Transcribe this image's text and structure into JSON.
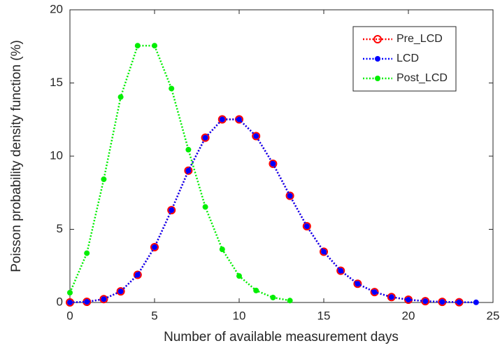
{
  "chart_data": {
    "type": "line",
    "xlabel": "Number of available measurement days",
    "ylabel": "Poisson probability density function (%)",
    "xlim": [
      0,
      25
    ],
    "xticks": [
      0,
      5,
      10,
      15,
      20,
      25
    ],
    "ylim": [
      0,
      20
    ],
    "yticks": [
      0,
      5,
      10,
      15,
      20
    ],
    "legend": "top-right",
    "series": [
      {
        "name": "Pre_LCD",
        "color": "#ff0000",
        "marker": "open-circle",
        "x": [
          0,
          1,
          2,
          3,
          4,
          5,
          6,
          7,
          8,
          9,
          10,
          11,
          12,
          13,
          14,
          15,
          16,
          17,
          18,
          19,
          20,
          21,
          22,
          23
        ],
        "values": [
          0.0045,
          0.045,
          0.23,
          0.76,
          1.89,
          3.78,
          6.31,
          9.01,
          11.26,
          12.51,
          12.51,
          11.37,
          9.48,
          7.29,
          5.21,
          3.47,
          2.17,
          1.28,
          0.71,
          0.37,
          0.19,
          0.09,
          0.04,
          0.02
        ]
      },
      {
        "name": "LCD",
        "color": "#0000ff",
        "marker": "dot",
        "x": [
          0,
          1,
          2,
          3,
          4,
          5,
          6,
          7,
          8,
          9,
          10,
          11,
          12,
          13,
          14,
          15,
          16,
          17,
          18,
          19,
          20,
          21,
          22,
          23,
          24
        ],
        "values": [
          0.0045,
          0.045,
          0.23,
          0.76,
          1.89,
          3.78,
          6.31,
          9.01,
          11.26,
          12.51,
          12.51,
          11.37,
          9.48,
          7.29,
          5.21,
          3.47,
          2.17,
          1.28,
          0.71,
          0.37,
          0.19,
          0.09,
          0.04,
          0.02,
          0.01
        ]
      },
      {
        "name": "Post_LCD",
        "color": "#00ee00",
        "marker": "dot",
        "x": [
          0,
          1,
          2,
          3,
          4,
          5,
          6,
          7,
          8,
          9,
          10,
          11,
          12,
          13
        ],
        "values": [
          0.67,
          3.37,
          8.42,
          14.04,
          17.55,
          17.55,
          14.62,
          10.44,
          6.53,
          3.63,
          1.81,
          0.82,
          0.34,
          0.13
        ]
      }
    ]
  }
}
